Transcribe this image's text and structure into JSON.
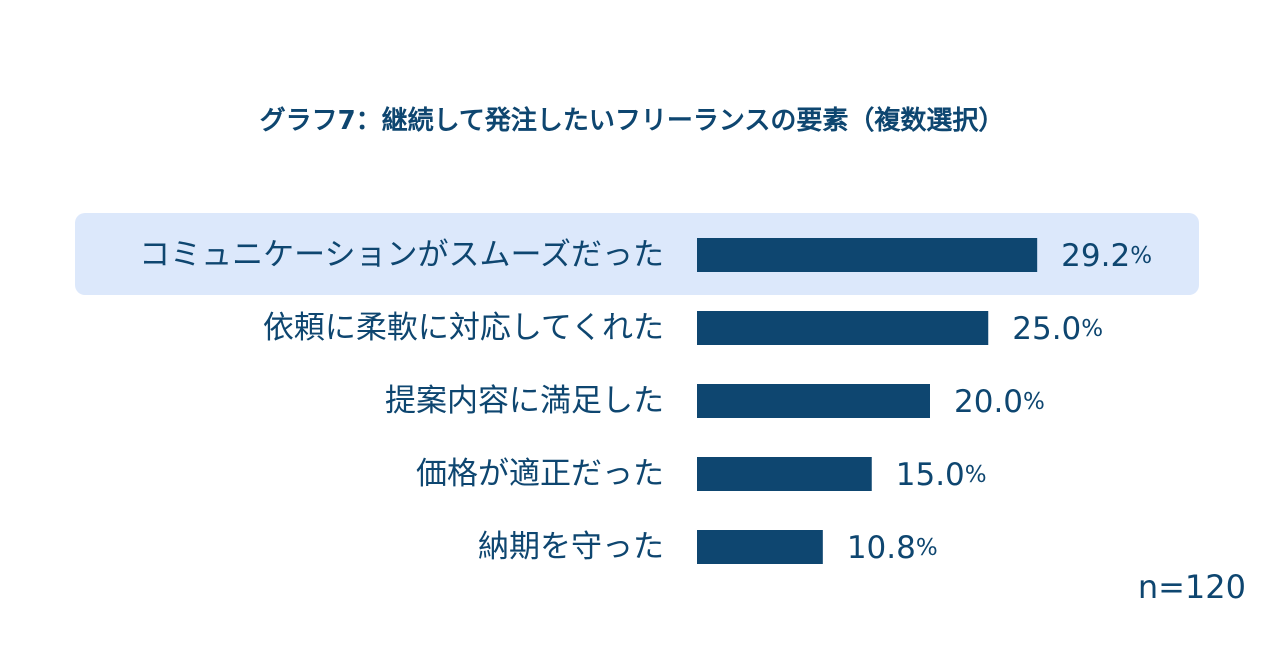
{
  "title": "グラフ7：継続して発注したいフリーランスの要素（複数選択）",
  "sample_size": "n=120",
  "colors": {
    "bar": "#0e4670",
    "text": "#0e4670",
    "highlight_bg": "#dce8fb"
  },
  "chart_data": {
    "type": "bar",
    "orientation": "horizontal",
    "title": "グラフ7：継続して発注したいフリーランスの要素（複数選択）",
    "categories": [
      "コミュニケーションがスムーズだった",
      "依頼に柔軟に対応してくれた",
      "提案内容に満足した",
      "価格が適正だった",
      "納期を守った"
    ],
    "values": [
      29.2,
      25.0,
      20.0,
      15.0,
      10.8
    ],
    "value_labels": [
      "29.2",
      "25.0",
      "20.0",
      "15.0",
      "10.8"
    ],
    "unit": "%",
    "highlighted_category": "コミュニケーションがスムーズだった",
    "grid": false,
    "legend": "none"
  }
}
